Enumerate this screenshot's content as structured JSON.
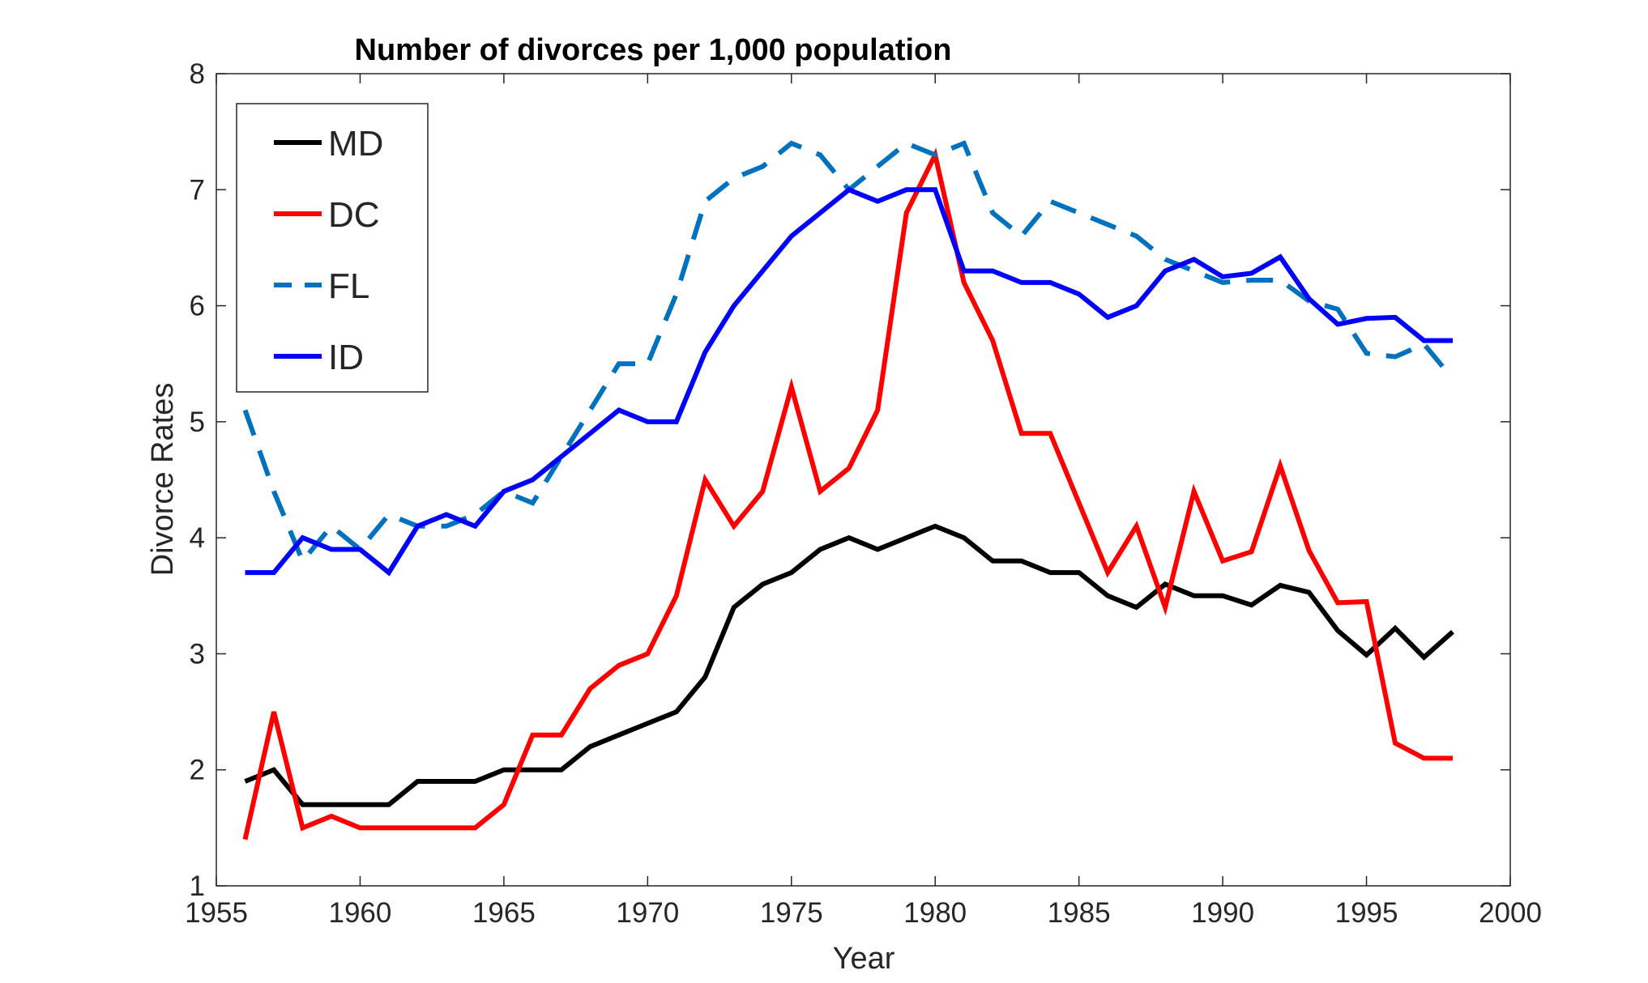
{
  "chart_data": {
    "type": "line",
    "title": "Number of divorces per 1,000 population",
    "xlabel": "Year",
    "ylabel": "Divorce Rates",
    "xlim": [
      1955,
      2000
    ],
    "ylim": [
      1,
      8
    ],
    "xticks": [
      1955,
      1960,
      1965,
      1970,
      1975,
      1980,
      1985,
      1990,
      1995,
      2000
    ],
    "yticks": [
      1,
      2,
      3,
      4,
      5,
      6,
      7,
      8
    ],
    "grid": false,
    "legend_position": "top-left",
    "x": [
      1956,
      1957,
      1958,
      1959,
      1960,
      1961,
      1962,
      1963,
      1964,
      1965,
      1966,
      1967,
      1968,
      1969,
      1970,
      1971,
      1972,
      1973,
      1974,
      1975,
      1976,
      1977,
      1978,
      1979,
      1980,
      1981,
      1982,
      1983,
      1984,
      1985,
      1986,
      1987,
      1988,
      1989,
      1990,
      1991,
      1992,
      1993,
      1994,
      1995,
      1996,
      1997,
      1998
    ],
    "series": [
      {
        "name": "MD",
        "color": "#000000",
        "style": "solid",
        "values": [
          1.9,
          2.0,
          1.7,
          1.7,
          1.7,
          1.7,
          1.9,
          1.9,
          1.9,
          2.0,
          2.0,
          2.0,
          2.2,
          2.3,
          2.4,
          2.5,
          2.8,
          3.4,
          3.6,
          3.7,
          3.9,
          4.0,
          3.9,
          4.0,
          4.1,
          4.0,
          3.8,
          3.8,
          3.7,
          3.7,
          3.5,
          3.4,
          3.6,
          3.5,
          3.5,
          3.42,
          3.59,
          3.53,
          3.2,
          2.99,
          3.22,
          2.97,
          3.19
        ]
      },
      {
        "name": "DC",
        "color": "#ff0000",
        "style": "solid",
        "values": [
          1.4,
          2.5,
          1.5,
          1.6,
          1.5,
          1.5,
          1.5,
          1.5,
          1.5,
          1.7,
          2.3,
          2.3,
          2.7,
          2.9,
          3.0,
          3.5,
          4.5,
          4.1,
          4.4,
          5.3,
          4.4,
          4.6,
          5.1,
          6.8,
          7.3,
          6.2,
          5.7,
          4.9,
          4.9,
          4.3,
          3.7,
          4.1,
          3.4,
          4.4,
          3.8,
          3.88,
          4.62,
          3.89,
          3.44,
          3.45,
          2.23,
          2.1,
          2.1
        ]
      },
      {
        "name": "FL",
        "color": "#0072bd",
        "style": "dashed",
        "values": [
          5.1,
          4.4,
          3.8,
          4.1,
          3.9,
          4.2,
          4.1,
          4.1,
          4.2,
          4.4,
          4.3,
          4.7,
          5.1,
          5.5,
          5.5,
          6.1,
          6.9,
          7.1,
          7.2,
          7.4,
          7.3,
          7.0,
          7.2,
          7.4,
          7.3,
          7.4,
          6.8,
          6.6,
          6.9,
          6.8,
          6.7,
          6.6,
          6.4,
          6.3,
          6.2,
          6.22,
          6.22,
          6.04,
          5.97,
          5.59,
          5.56,
          5.67,
          5.37
        ]
      },
      {
        "name": "ID",
        "color": "#0000ff",
        "style": "solid",
        "values": [
          3.7,
          3.7,
          4.0,
          3.9,
          3.9,
          3.7,
          4.1,
          4.2,
          4.1,
          4.4,
          4.5,
          4.7,
          4.9,
          5.1,
          5.0,
          5.0,
          5.6,
          6.0,
          6.3,
          6.6,
          6.8,
          7.0,
          6.9,
          7.0,
          7.0,
          6.3,
          6.3,
          6.2,
          6.2,
          6.1,
          5.9,
          6.0,
          6.3,
          6.4,
          6.25,
          6.28,
          6.42,
          6.06,
          5.84,
          5.89,
          5.9,
          5.7,
          5.7
        ]
      }
    ]
  }
}
